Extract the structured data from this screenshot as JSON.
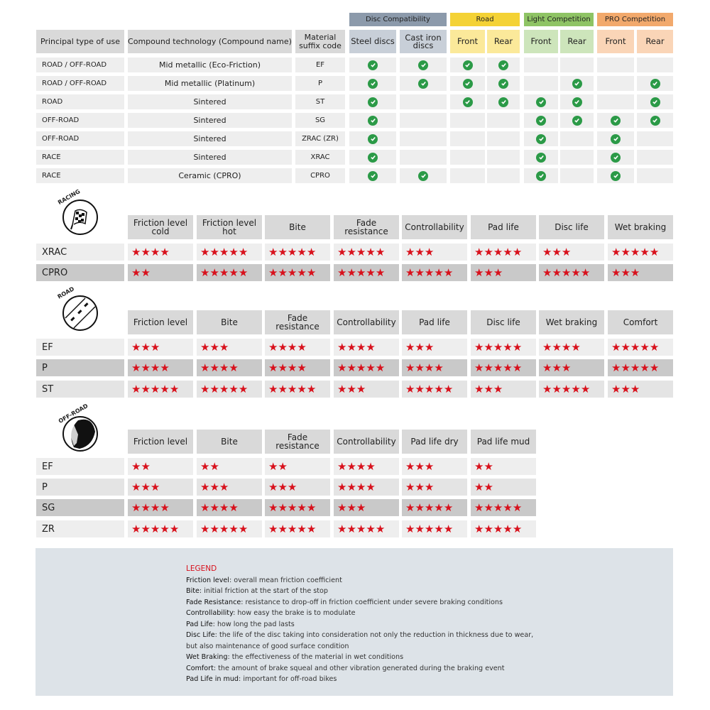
{
  "top_table": {
    "headers": [
      "Principal type of use",
      "Compound technology (Compound name)",
      "Material suffix code"
    ],
    "groups": [
      {
        "label": "Disc Compatibility",
        "color": "#8c9aab",
        "sub_color": "#c8cfd8",
        "subs": [
          "Steel discs",
          "Cast iron discs"
        ]
      },
      {
        "label": "Road",
        "color": "#f4d235",
        "sub_color": "#fbe99a",
        "subs": [
          "Front",
          "Rear"
        ]
      },
      {
        "label": "Light Competition",
        "color": "#8fc465",
        "sub_color": "#cde5bb",
        "subs": [
          "Front",
          "Rear"
        ]
      },
      {
        "label": "PRO Competition",
        "color": "#f2a96c",
        "sub_color": "#fad5b7",
        "subs": [
          "Front",
          "Rear"
        ]
      }
    ],
    "rows": [
      {
        "use": "ROAD / OFF-ROAD",
        "compound": "Mid metallic (Eco-Friction)",
        "code": "EF",
        "checks": [
          1,
          1,
          1,
          1,
          0,
          0,
          0,
          0
        ]
      },
      {
        "use": "ROAD / OFF-ROAD",
        "compound": "Mid metallic (Platinum)",
        "code": "P",
        "checks": [
          1,
          1,
          1,
          1,
          0,
          1,
          0,
          1
        ]
      },
      {
        "use": "ROAD",
        "compound": "Sintered",
        "code": "ST",
        "checks": [
          1,
          0,
          1,
          1,
          1,
          1,
          0,
          1
        ]
      },
      {
        "use": "OFF-ROAD",
        "compound": "Sintered",
        "code": "SG",
        "checks": [
          1,
          0,
          0,
          0,
          1,
          1,
          1,
          1
        ]
      },
      {
        "use": "OFF-ROAD",
        "compound": "Sintered",
        "code": "ZRAC (ZR)",
        "checks": [
          1,
          0,
          0,
          0,
          1,
          0,
          1,
          0
        ]
      },
      {
        "use": "RACE",
        "compound": "Sintered",
        "code": "XRAC",
        "checks": [
          1,
          0,
          0,
          0,
          1,
          0,
          1,
          0
        ]
      },
      {
        "use": "RACE",
        "compound": "Ceramic (CPRO)",
        "code": "CPRO",
        "checks": [
          1,
          1,
          0,
          0,
          1,
          0,
          1,
          0
        ]
      }
    ]
  },
  "sections": [
    {
      "logo": "RACING",
      "headers": [
        "Friction level cold",
        "Friction level hot",
        "Bite",
        "Fade resistance",
        "Controllability",
        "Pad life",
        "Disc life",
        "Wet braking"
      ],
      "rows": [
        {
          "name": "XRAC",
          "ratings": [
            4,
            5,
            5,
            5,
            3,
            5,
            3,
            5
          ],
          "shade": "row"
        },
        {
          "name": "CPRO",
          "ratings": [
            2,
            5,
            5,
            5,
            5,
            3,
            5,
            3
          ],
          "shade": "dark"
        }
      ]
    },
    {
      "logo": "ROAD",
      "headers": [
        "Friction level",
        "Bite",
        "Fade resistance",
        "Controllability",
        "Pad life",
        "Disc life",
        "Wet braking",
        "Comfort"
      ],
      "rows": [
        {
          "name": "EF",
          "ratings": [
            3,
            3,
            4,
            4,
            3,
            5,
            4,
            5
          ],
          "shade": "row"
        },
        {
          "name": "P",
          "ratings": [
            4,
            4,
            4,
            5,
            4,
            5,
            3,
            5
          ],
          "shade": "dark"
        },
        {
          "name": "ST",
          "ratings": [
            5,
            5,
            5,
            3,
            5,
            3,
            5,
            3
          ],
          "shade": "mid"
        }
      ]
    },
    {
      "logo": "OFF-ROAD",
      "headers": [
        "Friction level",
        "Bite",
        "Fade resistance",
        "Controllability",
        "Pad life dry",
        "Pad life mud"
      ],
      "rows": [
        {
          "name": "EF",
          "ratings": [
            2,
            2,
            2,
            4,
            3,
            2
          ],
          "shade": "row"
        },
        {
          "name": "P",
          "ratings": [
            3,
            3,
            3,
            4,
            3,
            2
          ],
          "shade": "mid"
        },
        {
          "name": "SG",
          "ratings": [
            4,
            4,
            5,
            3,
            5,
            5
          ],
          "shade": "dark"
        },
        {
          "name": "ZR",
          "ratings": [
            5,
            5,
            5,
            5,
            5,
            5
          ],
          "shade": "row"
        }
      ]
    }
  ],
  "legend": {
    "title": "LEGEND",
    "items": [
      {
        "term": "Friction level",
        "desc": ": overall mean friction coefficient"
      },
      {
        "term": "Bite",
        "desc": ": initial friction at the start of the stop"
      },
      {
        "term": "Fade Resistance",
        "desc": ": resistance to drop-off in friction coefficient under severe braking conditions"
      },
      {
        "term": "Controllability",
        "desc": ": how easy the brake is to modulate"
      },
      {
        "term": "Pad Life",
        "desc": ": how long the pad lasts"
      },
      {
        "term": "Disc Life",
        "desc": ": the life of the disc taking into consideration not only the reduction in thickness due to wear,"
      },
      {
        "term": "",
        "desc": "but also maintenance of good surface condition"
      },
      {
        "term": "Wet Braking",
        "desc": ": the effectiveness of the material in wet conditions"
      },
      {
        "term": "Comfort",
        "desc": ": the amount of brake squeal and other vibration generated during the braking event"
      },
      {
        "term": "Pad Life in mud",
        "desc": ": important for off-road bikes"
      }
    ]
  },
  "colors": {
    "star": "#d8111c",
    "check": "#2b9a47",
    "legend_bg": "#dde3e8"
  }
}
